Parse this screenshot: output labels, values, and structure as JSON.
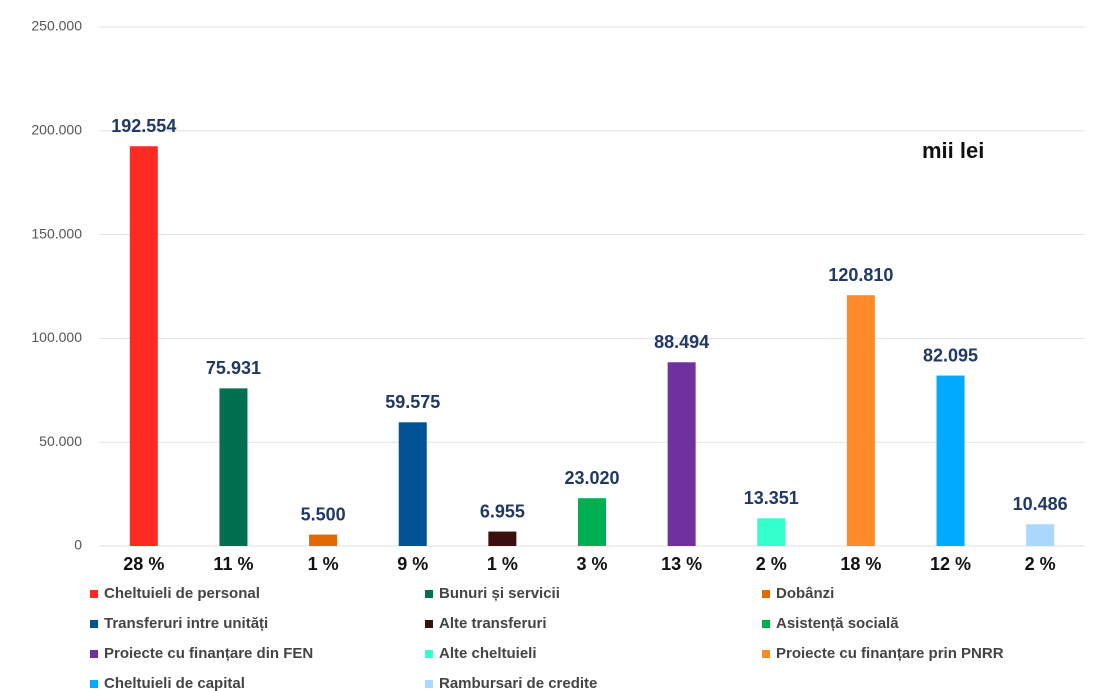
{
  "chart_data": {
    "type": "bar",
    "annotation": "mii lei",
    "categories": [
      "Cheltuieli de personal",
      "Bunuri și servicii",
      "Dobânzi",
      "Transferuri intre unități",
      "Alte transferuri",
      "Asistență socială",
      "Proiecte cu finanțare din FEN",
      "Alte cheltuieli",
      "Proiecte cu finanțare prin PNRR",
      "Cheltuieli de capital",
      "Rambursari de credite"
    ],
    "values": [
      192554,
      75931,
      5500,
      59575,
      6955,
      23020,
      88494,
      13351,
      120810,
      82095,
      10486
    ],
    "value_labels": [
      "192.554",
      "75.931",
      "5.500",
      "59.575",
      "6.955",
      "23.020",
      "88.494",
      "13.351",
      "120.810",
      "82.095",
      "10.486"
    ],
    "percent_labels": [
      "28 %",
      "11 %",
      "1 %",
      "9 %",
      "1 %",
      "3 %",
      "13 %",
      "2 %",
      "18 %",
      "12 %",
      "2 %"
    ],
    "colors": [
      "#ff2a22",
      "#007050",
      "#e06a00",
      "#005494",
      "#3b0f0f",
      "#00b050",
      "#7030a0",
      "#33ffcc",
      "#ff8a2a",
      "#00aaff",
      "#aad8ff"
    ],
    "ylim": [
      0,
      250000
    ],
    "yticks": [
      0,
      {
        "value": 50000,
        "label": "50.000"
      },
      {
        "value": 100000,
        "label": "100.000"
      },
      {
        "value": 150000,
        "label": "150.000"
      },
      {
        "value": 200000,
        "label": "200.000"
      },
      {
        "value": 250000,
        "label": "250.000"
      }
    ],
    "grid": true
  }
}
